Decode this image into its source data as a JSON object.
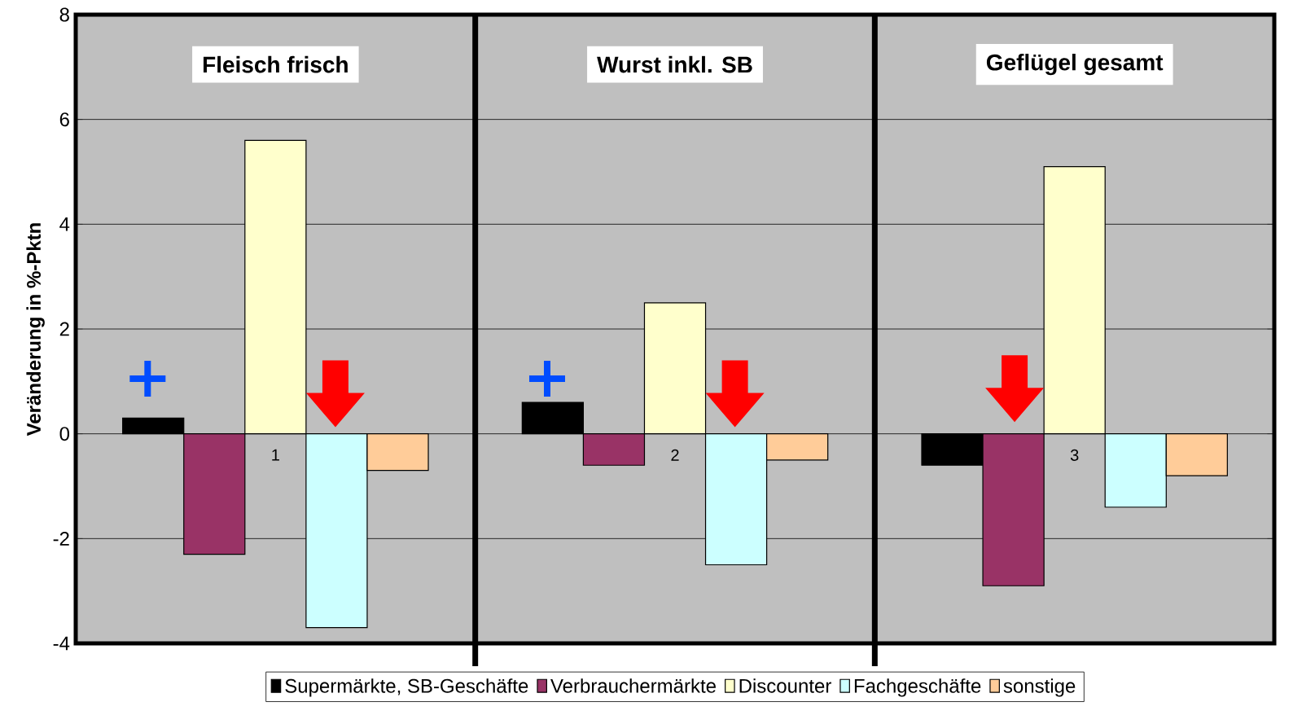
{
  "chart_data": {
    "type": "bar",
    "ylabel": "Veränderung in %-Pktn",
    "categories": [
      "1",
      "2",
      "3"
    ],
    "series": [
      {
        "name": "Supermärkte, SB-Geschäfte",
        "color": "#000000",
        "values": [
          0.3,
          0.6,
          -0.6
        ]
      },
      {
        "name": "Verbrauchermärkte",
        "color": "#993366",
        "values": [
          -2.3,
          -0.6,
          -2.9
        ]
      },
      {
        "name": "Discounter",
        "color": "#ffffcc",
        "values": [
          5.6,
          2.5,
          5.1
        ]
      },
      {
        "name": "Fachgeschäfte",
        "color": "#ccffff",
        "values": [
          -3.7,
          -2.5,
          -1.4
        ]
      },
      {
        "name": "sonstige",
        "color": "#ffcc99",
        "values": [
          -0.7,
          -0.5,
          -0.8
        ]
      }
    ],
    "annotations": [
      "Fleisch frisch",
      "Wurst inkl. SB",
      "Geflügel gesamt"
    ],
    "ylim": [
      -4,
      8
    ],
    "yticks": [
      -4,
      -2,
      0,
      2,
      4,
      6,
      8
    ],
    "grid": "y",
    "legend": "bottom"
  }
}
